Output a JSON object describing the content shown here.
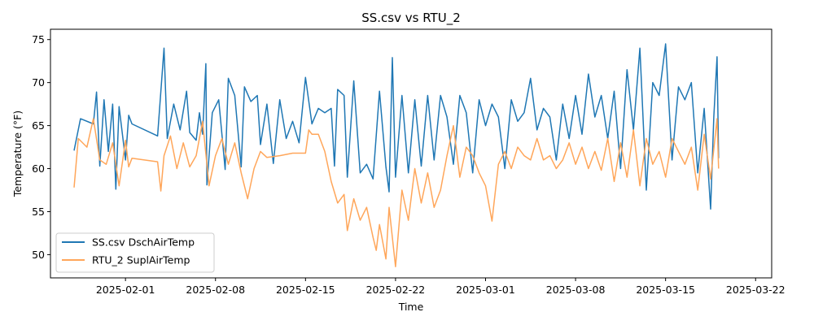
{
  "chart_data": {
    "type": "line",
    "title": "SS.csv vs RTU_2",
    "xlabel": "Time",
    "ylabel": "Temperature (°F)",
    "xlim": [
      "2025-01-26T04:00",
      "2025-03-23T06:00"
    ],
    "ylim": [
      47.3,
      76.2
    ],
    "x_ticks": [
      "2025-02-01",
      "2025-02-08",
      "2025-02-15",
      "2025-02-22",
      "2025-03-01",
      "2025-03-08",
      "2025-03-15",
      "2025-03-22"
    ],
    "y_ticks": [
      50,
      55,
      60,
      65,
      70,
      75
    ],
    "grid": false,
    "legend_position": "lower-left",
    "series": [
      {
        "name": "SS.csv DschAirTemp",
        "color": "#1f77b4",
        "points": [
          [
            "2025-01-28T00:00",
            62.1
          ],
          [
            "2025-01-28T12:00",
            65.8
          ],
          [
            "2025-01-29T12:00",
            65.2
          ],
          [
            "2025-01-29T18:00",
            68.9
          ],
          [
            "2025-01-30T00:00",
            60.3
          ],
          [
            "2025-01-30T08:00",
            68.0
          ],
          [
            "2025-01-30T16:00",
            62.0
          ],
          [
            "2025-01-31T00:00",
            67.5
          ],
          [
            "2025-01-31T06:00",
            57.6
          ],
          [
            "2025-01-31T12:00",
            67.2
          ],
          [
            "2025-02-01T00:00",
            61.0
          ],
          [
            "2025-02-01T06:00",
            66.2
          ],
          [
            "2025-02-01T12:00",
            65.2
          ],
          [
            "2025-02-03T12:00",
            63.8
          ],
          [
            "2025-02-04T00:00",
            74.0
          ],
          [
            "2025-02-04T06:00",
            63.5
          ],
          [
            "2025-02-04T18:00",
            67.5
          ],
          [
            "2025-02-05T06:00",
            64.5
          ],
          [
            "2025-02-05T18:00",
            69.0
          ],
          [
            "2025-02-06T00:00",
            64.2
          ],
          [
            "2025-02-06T12:00",
            63.3
          ],
          [
            "2025-02-06T18:00",
            66.5
          ],
          [
            "2025-02-07T00:00",
            64.0
          ],
          [
            "2025-02-07T06:00",
            72.2
          ],
          [
            "2025-02-07T08:00",
            58.1
          ],
          [
            "2025-02-07T18:00",
            66.5
          ],
          [
            "2025-02-08T06:00",
            68.0
          ],
          [
            "2025-02-08T18:00",
            59.9
          ],
          [
            "2025-02-09T00:00",
            70.5
          ],
          [
            "2025-02-09T12:00",
            68.5
          ],
          [
            "2025-02-10T00:00",
            60.2
          ],
          [
            "2025-02-10T06:00",
            69.5
          ],
          [
            "2025-02-10T18:00",
            67.8
          ],
          [
            "2025-02-11T06:00",
            68.5
          ],
          [
            "2025-02-11T12:00",
            62.8
          ],
          [
            "2025-02-12T00:00",
            67.5
          ],
          [
            "2025-02-12T12:00",
            60.6
          ],
          [
            "2025-02-13T00:00",
            68.0
          ],
          [
            "2025-02-13T12:00",
            63.5
          ],
          [
            "2025-02-14T00:00",
            65.5
          ],
          [
            "2025-02-14T12:00",
            63.0
          ],
          [
            "2025-02-15T00:00",
            70.6
          ],
          [
            "2025-02-15T12:00",
            65.2
          ],
          [
            "2025-02-16T00:00",
            67.0
          ],
          [
            "2025-02-16T12:00",
            66.5
          ],
          [
            "2025-02-17T00:00",
            67.0
          ],
          [
            "2025-02-17T06:00",
            60.3
          ],
          [
            "2025-02-17T12:00",
            69.2
          ],
          [
            "2025-02-18T00:00",
            68.5
          ],
          [
            "2025-02-18T06:00",
            59.0
          ],
          [
            "2025-02-18T18:00",
            70.2
          ],
          [
            "2025-02-19T06:00",
            59.5
          ],
          [
            "2025-02-19T18:00",
            60.5
          ],
          [
            "2025-02-20T06:00",
            58.8
          ],
          [
            "2025-02-20T18:00",
            69.0
          ],
          [
            "2025-02-21T06:00",
            60.2
          ],
          [
            "2025-02-21T12:00",
            57.3
          ],
          [
            "2025-02-21T18:00",
            72.9
          ],
          [
            "2025-02-22T00:00",
            59.0
          ],
          [
            "2025-02-22T12:00",
            68.5
          ],
          [
            "2025-02-23T00:00",
            59.5
          ],
          [
            "2025-02-23T12:00",
            68.0
          ],
          [
            "2025-02-24T00:00",
            60.3
          ],
          [
            "2025-02-24T12:00",
            68.5
          ],
          [
            "2025-02-25T00:00",
            61.0
          ],
          [
            "2025-02-25T12:00",
            68.5
          ],
          [
            "2025-02-26T00:00",
            66.0
          ],
          [
            "2025-02-26T12:00",
            60.5
          ],
          [
            "2025-02-27T00:00",
            68.5
          ],
          [
            "2025-02-27T12:00",
            66.5
          ],
          [
            "2025-02-28T00:00",
            59.5
          ],
          [
            "2025-02-28T12:00",
            68.0
          ],
          [
            "2025-03-01T00:00",
            65.0
          ],
          [
            "2025-03-01T12:00",
            67.5
          ],
          [
            "2025-03-02T00:00",
            66.0
          ],
          [
            "2025-03-02T12:00",
            60.0
          ],
          [
            "2025-03-03T00:00",
            68.0
          ],
          [
            "2025-03-03T12:00",
            65.5
          ],
          [
            "2025-03-04T00:00",
            66.5
          ],
          [
            "2025-03-04T12:00",
            70.5
          ],
          [
            "2025-03-05T00:00",
            64.5
          ],
          [
            "2025-03-05T12:00",
            67.0
          ],
          [
            "2025-03-06T00:00",
            66.0
          ],
          [
            "2025-03-06T12:00",
            61.0
          ],
          [
            "2025-03-07T00:00",
            67.5
          ],
          [
            "2025-03-07T12:00",
            63.5
          ],
          [
            "2025-03-08T00:00",
            68.5
          ],
          [
            "2025-03-08T12:00",
            64.0
          ],
          [
            "2025-03-09T00:00",
            71.0
          ],
          [
            "2025-03-09T12:00",
            66.0
          ],
          [
            "2025-03-10T00:00",
            68.5
          ],
          [
            "2025-03-10T12:00",
            63.5
          ],
          [
            "2025-03-11T00:00",
            69.0
          ],
          [
            "2025-03-11T12:00",
            60.0
          ],
          [
            "2025-03-12T00:00",
            71.5
          ],
          [
            "2025-03-12T12:00",
            64.5
          ],
          [
            "2025-03-13T00:00",
            74.0
          ],
          [
            "2025-03-13T12:00",
            57.5
          ],
          [
            "2025-03-14T00:00",
            70.0
          ],
          [
            "2025-03-14T12:00",
            68.5
          ],
          [
            "2025-03-15T00:00",
            74.5
          ],
          [
            "2025-03-15T12:00",
            61.0
          ],
          [
            "2025-03-16T00:00",
            69.5
          ],
          [
            "2025-03-16T12:00",
            68.0
          ],
          [
            "2025-03-17T00:00",
            70.0
          ],
          [
            "2025-03-17T12:00",
            59.5
          ],
          [
            "2025-03-18T00:00",
            67.0
          ],
          [
            "2025-03-18T12:00",
            55.3
          ],
          [
            "2025-03-18T18:00",
            66.0
          ],
          [
            "2025-03-19T00:00",
            73.0
          ],
          [
            "2025-03-19T03:00",
            61.2
          ]
        ]
      },
      {
        "name": "RTU_2 SuplAirTemp",
        "color": "#ffa65a",
        "points": [
          [
            "2025-01-28T00:00",
            57.8
          ],
          [
            "2025-01-28T08:00",
            63.5
          ],
          [
            "2025-01-29T00:00",
            62.5
          ],
          [
            "2025-01-29T12:00",
            65.8
          ],
          [
            "2025-01-30T00:00",
            61.0
          ],
          [
            "2025-01-30T12:00",
            60.5
          ],
          [
            "2025-01-31T00:00",
            63.0
          ],
          [
            "2025-01-31T12:00",
            58.0
          ],
          [
            "2025-02-01T00:00",
            63.3
          ],
          [
            "2025-02-01T06:00",
            60.2
          ],
          [
            "2025-02-01T12:00",
            61.2
          ],
          [
            "2025-02-03T12:00",
            60.8
          ],
          [
            "2025-02-03T18:00",
            57.4
          ],
          [
            "2025-02-04T00:00",
            61.5
          ],
          [
            "2025-02-04T12:00",
            63.8
          ],
          [
            "2025-02-05T00:00",
            60.0
          ],
          [
            "2025-02-05T12:00",
            63.0
          ],
          [
            "2025-02-06T00:00",
            60.2
          ],
          [
            "2025-02-06T12:00",
            61.5
          ],
          [
            "2025-02-07T00:00",
            65.5
          ],
          [
            "2025-02-07T12:00",
            58.0
          ],
          [
            "2025-02-08T00:00",
            61.5
          ],
          [
            "2025-02-08T12:00",
            63.5
          ],
          [
            "2025-02-09T00:00",
            60.5
          ],
          [
            "2025-02-09T12:00",
            63.0
          ],
          [
            "2025-02-10T00:00",
            59.5
          ],
          [
            "2025-02-10T12:00",
            56.5
          ],
          [
            "2025-02-11T00:00",
            60.0
          ],
          [
            "2025-02-11T12:00",
            62.0
          ],
          [
            "2025-02-12T00:00",
            61.3
          ],
          [
            "2025-02-13T00:00",
            61.5
          ],
          [
            "2025-02-14T00:00",
            61.8
          ],
          [
            "2025-02-15T00:00",
            61.8
          ],
          [
            "2025-02-15T06:00",
            64.5
          ],
          [
            "2025-02-15T12:00",
            64.0
          ],
          [
            "2025-02-16T00:00",
            64.0
          ],
          [
            "2025-02-16T12:00",
            62.0
          ],
          [
            "2025-02-17T00:00",
            58.5
          ],
          [
            "2025-02-17T12:00",
            56.0
          ],
          [
            "2025-02-18T00:00",
            57.0
          ],
          [
            "2025-02-18T06:00",
            52.8
          ],
          [
            "2025-02-18T18:00",
            56.5
          ],
          [
            "2025-02-19T06:00",
            54.0
          ],
          [
            "2025-02-19T18:00",
            55.5
          ],
          [
            "2025-02-20T06:00",
            52.0
          ],
          [
            "2025-02-20T12:00",
            50.5
          ],
          [
            "2025-02-20T18:00",
            53.5
          ],
          [
            "2025-02-21T06:00",
            49.5
          ],
          [
            "2025-02-21T12:00",
            55.5
          ],
          [
            "2025-02-21T18:00",
            52.0
          ],
          [
            "2025-02-22T00:00",
            48.6
          ],
          [
            "2025-02-22T12:00",
            57.5
          ],
          [
            "2025-02-23T00:00",
            54.0
          ],
          [
            "2025-02-23T12:00",
            60.0
          ],
          [
            "2025-02-24T00:00",
            56.0
          ],
          [
            "2025-02-24T12:00",
            59.5
          ],
          [
            "2025-02-25T00:00",
            55.5
          ],
          [
            "2025-02-25T12:00",
            57.5
          ],
          [
            "2025-02-26T00:00",
            61.5
          ],
          [
            "2025-02-26T12:00",
            65.0
          ],
          [
            "2025-02-27T00:00",
            59.0
          ],
          [
            "2025-02-27T12:00",
            62.5
          ],
          [
            "2025-02-28T00:00",
            61.5
          ],
          [
            "2025-02-28T12:00",
            59.5
          ],
          [
            "2025-03-01T00:00",
            58.0
          ],
          [
            "2025-03-01T12:00",
            53.9
          ],
          [
            "2025-03-02T00:00",
            60.5
          ],
          [
            "2025-03-02T12:00",
            62.0
          ],
          [
            "2025-03-03T00:00",
            60.0
          ],
          [
            "2025-03-03T12:00",
            62.5
          ],
          [
            "2025-03-04T00:00",
            61.5
          ],
          [
            "2025-03-04T12:00",
            61.0
          ],
          [
            "2025-03-05T00:00",
            63.5
          ],
          [
            "2025-03-05T12:00",
            61.0
          ],
          [
            "2025-03-06T00:00",
            61.5
          ],
          [
            "2025-03-06T12:00",
            60.0
          ],
          [
            "2025-03-07T00:00",
            61.0
          ],
          [
            "2025-03-07T12:00",
            63.0
          ],
          [
            "2025-03-08T00:00",
            60.5
          ],
          [
            "2025-03-08T12:00",
            62.5
          ],
          [
            "2025-03-09T00:00",
            60.0
          ],
          [
            "2025-03-09T12:00",
            62.0
          ],
          [
            "2025-03-10T00:00",
            59.8
          ],
          [
            "2025-03-10T12:00",
            63.5
          ],
          [
            "2025-03-11T00:00",
            58.5
          ],
          [
            "2025-03-11T12:00",
            63.0
          ],
          [
            "2025-03-12T00:00",
            59.0
          ],
          [
            "2025-03-12T12:00",
            64.5
          ],
          [
            "2025-03-13T00:00",
            58.0
          ],
          [
            "2025-03-13T12:00",
            63.5
          ],
          [
            "2025-03-14T00:00",
            60.5
          ],
          [
            "2025-03-14T12:00",
            62.0
          ],
          [
            "2025-03-15T00:00",
            59.0
          ],
          [
            "2025-03-15T12:00",
            63.5
          ],
          [
            "2025-03-16T00:00",
            62.0
          ],
          [
            "2025-03-16T12:00",
            60.5
          ],
          [
            "2025-03-17T00:00",
            62.5
          ],
          [
            "2025-03-17T12:00",
            57.5
          ],
          [
            "2025-03-18T00:00",
            64.0
          ],
          [
            "2025-03-18T12:00",
            58.8
          ],
          [
            "2025-03-19T00:00",
            65.8
          ],
          [
            "2025-03-19T03:00",
            60.0
          ]
        ]
      }
    ]
  }
}
